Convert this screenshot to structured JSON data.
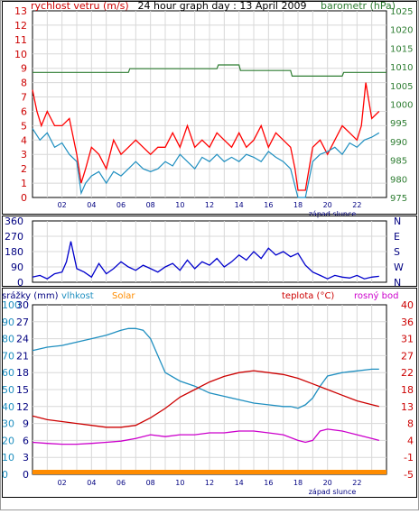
{
  "chart_data": [
    {
      "type": "line",
      "title": "24 hour graph day : 13 April 2009",
      "left_label": "rychlost vetru (m/s)",
      "right_label": "barometr (hPa)",
      "x_ticks": [
        "02",
        "04",
        "06",
        "08",
        "10",
        "12",
        "14",
        "16",
        "18",
        "20",
        "22"
      ],
      "x_note": "západ slunce",
      "y_left": {
        "min": 0,
        "max": 13,
        "ticks": [
          "0",
          "1",
          "2",
          "3",
          "4",
          "5",
          "6",
          "7",
          "8",
          "9",
          "10",
          "11",
          "12",
          "13"
        ]
      },
      "y_right": {
        "min": 975,
        "max": 1025,
        "ticks": [
          "975",
          "980",
          "985",
          "990",
          "995",
          "1000",
          "1005",
          "1010",
          "1015",
          "1020",
          "1025"
        ]
      },
      "series": [
        {
          "color": "#ff0000",
          "axis": "left",
          "x": [
            0,
            0.3,
            0.6,
            1.0,
            1.5,
            2.0,
            2.5,
            3.0,
            3.3,
            3.6,
            4.0,
            4.5,
            5.0,
            5.5,
            6.0,
            6.5,
            7.0,
            7.5,
            8.0,
            8.5,
            9.0,
            9.5,
            10.0,
            10.5,
            11.0,
            11.5,
            12.0,
            12.5,
            13.0,
            13.5,
            14.0,
            14.5,
            15.0,
            15.5,
            16.0,
            16.5,
            17.0,
            17.5,
            17.8,
            18.0,
            18.5,
            19.0,
            19.5,
            20.0,
            20.5,
            21.0,
            21.5,
            22.0,
            22.3,
            22.6,
            23.0,
            23.5
          ],
          "y": [
            7.5,
            6.0,
            5.0,
            6.0,
            5.0,
            5.0,
            5.5,
            3.0,
            1.0,
            2.0,
            3.5,
            3.0,
            2.0,
            4.0,
            3.0,
            3.5,
            4.0,
            3.5,
            3.0,
            3.5,
            3.5,
            4.5,
            3.5,
            5.0,
            3.5,
            4.0,
            3.5,
            4.5,
            4.0,
            3.5,
            4.5,
            3.5,
            4.0,
            5.0,
            3.5,
            4.5,
            4.0,
            3.5,
            2.0,
            0.5,
            0.5,
            3.5,
            4.0,
            3.0,
            4.0,
            5.0,
            4.5,
            4.0,
            5.0,
            8.0,
            5.5,
            6.0
          ]
        },
        {
          "color": "#1f8fc0",
          "axis": "left",
          "x": [
            0,
            0.5,
            1.0,
            1.5,
            2.0,
            2.5,
            3.0,
            3.3,
            3.6,
            4.0,
            4.5,
            5.0,
            5.5,
            6.0,
            6.5,
            7.0,
            7.5,
            8.0,
            8.5,
            9.0,
            9.5,
            10.0,
            10.5,
            11.0,
            11.5,
            12.0,
            12.5,
            13.0,
            13.5,
            14.0,
            14.5,
            15.0,
            15.5,
            16.0,
            16.5,
            17.0,
            17.5,
            18.0,
            18.5,
            19.0,
            19.5,
            20.0,
            20.5,
            21.0,
            21.5,
            22.0,
            22.5,
            23.0,
            23.5
          ],
          "y": [
            4.8,
            4.0,
            4.5,
            3.5,
            3.8,
            3.0,
            2.5,
            0.3,
            1.0,
            1.5,
            1.8,
            1.0,
            1.8,
            1.5,
            2.0,
            2.5,
            2.0,
            1.8,
            2.0,
            2.5,
            2.2,
            3.0,
            2.5,
            2.0,
            2.8,
            2.5,
            3.0,
            2.5,
            2.8,
            2.5,
            3.0,
            2.8,
            2.5,
            3.2,
            2.8,
            2.5,
            2.0,
            0.0,
            0.0,
            2.5,
            3.0,
            3.2,
            3.5,
            3.0,
            3.8,
            3.5,
            4.0,
            4.2,
            4.5
          ]
        },
        {
          "color": "#2e7d32",
          "axis": "right",
          "x": [
            0,
            6.5,
            6.6,
            12.5,
            12.6,
            14.0,
            14.1,
            17.5,
            17.6,
            21.0,
            21.1,
            24
          ],
          "y": [
            1008.5,
            1008.5,
            1009.5,
            1009.5,
            1010.5,
            1010.5,
            1009,
            1009,
            1007.5,
            1007.5,
            1008.5,
            1008.5
          ]
        }
      ]
    },
    {
      "type": "line",
      "y_ticks": [
        "0",
        "90",
        "180",
        "270",
        "360"
      ],
      "right_ticks": [
        "N",
        "W",
        "S",
        "E",
        "N"
      ],
      "series": [
        {
          "color": "#0000cc",
          "x": [
            0,
            0.5,
            1.0,
            1.5,
            2.0,
            2.3,
            2.6,
            3.0,
            3.5,
            4.0,
            4.5,
            5.0,
            5.5,
            6.0,
            6.5,
            7.0,
            7.5,
            8.0,
            8.5,
            9.0,
            9.5,
            10.0,
            10.5,
            11.0,
            11.5,
            12.0,
            12.5,
            13.0,
            13.5,
            14.0,
            14.5,
            15.0,
            15.5,
            16.0,
            16.5,
            17.0,
            17.5,
            18.0,
            18.5,
            19.0,
            19.5,
            20.0,
            20.5,
            21.0,
            21.5,
            22.0,
            22.5,
            23.0,
            23.5
          ],
          "y": [
            30,
            40,
            20,
            50,
            60,
            120,
            240,
            80,
            60,
            30,
            110,
            50,
            80,
            120,
            90,
            70,
            100,
            80,
            60,
            90,
            110,
            70,
            130,
            80,
            120,
            100,
            140,
            90,
            120,
            160,
            130,
            180,
            140,
            200,
            160,
            180,
            150,
            170,
            100,
            60,
            40,
            20,
            40,
            30,
            25,
            40,
            20,
            30,
            35
          ]
        }
      ]
    },
    {
      "type": "line",
      "left_labels": [
        "srážky (mm)",
        "vlhkost",
        "Solar"
      ],
      "right_labels": [
        "teplota (°C)",
        "rosný bod"
      ],
      "x_ticks": [
        "02",
        "04",
        "06",
        "08",
        "10",
        "12",
        "14",
        "16",
        "18",
        "20",
        "22"
      ],
      "x_note": "západ slunce",
      "y_left": {
        "ticks": [
          "0",
          "10",
          "20",
          "30",
          "40",
          "50",
          "60",
          "70",
          "80",
          "90",
          "100"
        ]
      },
      "y_mid": {
        "min": 0,
        "max": 30,
        "ticks": [
          "0",
          "3",
          "6",
          "9",
          "12",
          "15",
          "18",
          "21",
          "24",
          "27",
          "30"
        ]
      },
      "y_right": {
        "min": -5,
        "max": 40,
        "ticks": [
          "-5",
          "-1",
          "4",
          "8",
          "13",
          "18",
          "22",
          "27",
          "31",
          "36",
          "40"
        ]
      },
      "series": [
        {
          "color": "#1f8fc0",
          "axis": "left",
          "x": [
            0,
            1,
            2,
            3,
            4,
            5,
            6,
            6.5,
            7,
            7.5,
            8,
            8.5,
            9,
            10,
            11,
            12,
            13,
            14,
            15,
            16,
            17,
            17.5,
            18,
            18.5,
            19,
            19.5,
            20,
            21,
            22,
            23,
            23.5
          ],
          "y": [
            73,
            75,
            76,
            78,
            80,
            82,
            85,
            86,
            86,
            85,
            80,
            70,
            60,
            55,
            52,
            48,
            46,
            44,
            42,
            41,
            40,
            40,
            39,
            41,
            45,
            52,
            58,
            60,
            61,
            62,
            62
          ]
        },
        {
          "color": "#cc0000",
          "axis": "right",
          "x": [
            0,
            1,
            2,
            3,
            4,
            5,
            6,
            7,
            8,
            9,
            10,
            11,
            12,
            13,
            14,
            15,
            16,
            17,
            18,
            19,
            20,
            21,
            22,
            23,
            23.5
          ],
          "y": [
            10.5,
            9.5,
            9.0,
            8.5,
            8.0,
            7.5,
            7.5,
            8.0,
            10.0,
            12.5,
            15.5,
            17.5,
            19.5,
            21.0,
            22.0,
            22.5,
            22.0,
            21.5,
            20.5,
            19.0,
            17.5,
            16.0,
            14.5,
            13.5,
            13.0
          ]
        },
        {
          "color": "#cc00cc",
          "axis": "right",
          "x": [
            0,
            1,
            2,
            3,
            4,
            5,
            6,
            7,
            8,
            9,
            10,
            11,
            12,
            13,
            14,
            15,
            16,
            17,
            18,
            18.5,
            19,
            19.5,
            20,
            21,
            22,
            23,
            23.5
          ],
          "y": [
            3.5,
            3.2,
            3.0,
            3.0,
            3.2,
            3.5,
            3.8,
            4.5,
            5.5,
            5.0,
            5.5,
            5.5,
            6.0,
            6.0,
            6.5,
            6.5,
            6.0,
            5.5,
            4.0,
            3.5,
            4.0,
            6.5,
            7.0,
            6.5,
            5.5,
            4.5,
            4.0
          ]
        },
        {
          "color": "#ff8c00",
          "axis": "left",
          "x": [
            0,
            24
          ],
          "y": [
            0,
            0
          ]
        }
      ]
    }
  ]
}
